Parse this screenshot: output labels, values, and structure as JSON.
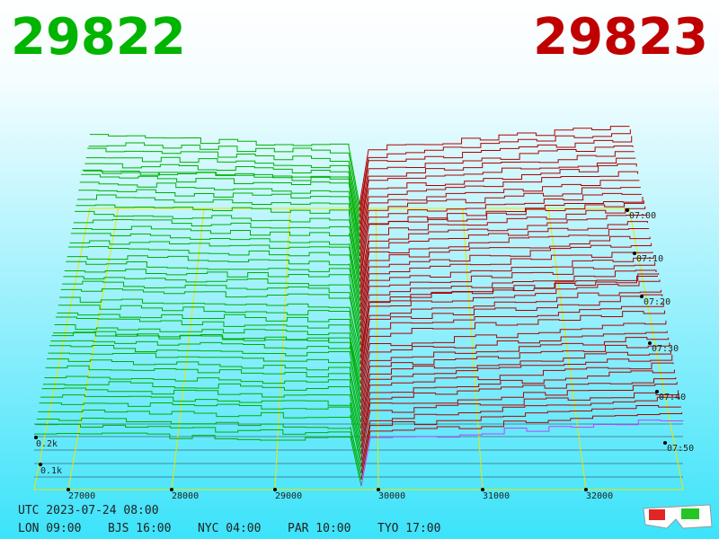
{
  "header": {
    "bid": "29822",
    "ask": "29823"
  },
  "price_axis": {
    "ticks": [
      "27000",
      "28000",
      "29000",
      "30000",
      "31000",
      "32000"
    ]
  },
  "time_axis": {
    "ticks": [
      "07:00",
      "07:10",
      "07:20",
      "07:30",
      "07:40",
      "07:50"
    ]
  },
  "volume_axis": {
    "ticks": [
      "0.2k",
      "0.1k"
    ]
  },
  "footer": {
    "utc": "UTC 2023-07-24 08:00",
    "zones": [
      "LON 09:00",
      "BJS 16:00",
      "NYC 04:00",
      "PAR 10:00",
      "TYO 17:00"
    ]
  }
}
